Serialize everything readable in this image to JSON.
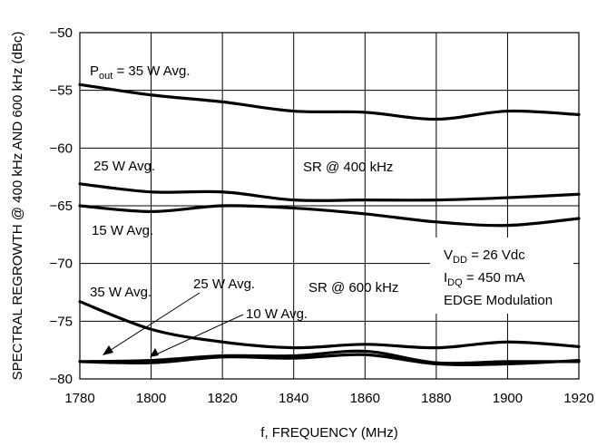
{
  "chart_data": {
    "type": "line",
    "title": "",
    "xlabel": "f, FREQUENCY (MHz)",
    "ylabel": "SPECTRAL REGROWTH @ 400 kHz AND 600 kHz (dBc)",
    "xlim": [
      1780,
      1920
    ],
    "ylim": [
      -80,
      -50
    ],
    "x_ticks": [
      "1780",
      "1800",
      "1820",
      "1840",
      "1860",
      "1880",
      "1900",
      "1920"
    ],
    "y_ticks": [
      "-50",
      "-55",
      "-60",
      "-65",
      "-70",
      "-75",
      "-80"
    ],
    "grid": true,
    "x": [
      1780,
      1800,
      1820,
      1840,
      1860,
      1880,
      1900,
      1920
    ],
    "series": [
      {
        "name": "Pout = 35 W Avg. (SR @ 400 kHz)",
        "values": [
          -54.5,
          -55.4,
          -56.0,
          -56.8,
          -56.9,
          -57.5,
          -56.8,
          -57.1
        ]
      },
      {
        "name": "25 W Avg. (SR @ 400 kHz)",
        "values": [
          -63.1,
          -63.8,
          -63.8,
          -64.5,
          -64.5,
          -64.5,
          -64.3,
          -64.0
        ]
      },
      {
        "name": "15 W Avg. (SR @ 400 kHz)",
        "values": [
          -65.0,
          -65.5,
          -65.0,
          -65.2,
          -65.7,
          -66.4,
          -66.7,
          -66.1
        ]
      },
      {
        "name": "35 W Avg. (SR @ 600 kHz)",
        "values": [
          -73.3,
          -75.7,
          -76.8,
          -77.3,
          -77.0,
          -77.3,
          -76.8,
          -77.2
        ]
      },
      {
        "name": "25 W Avg. (SR @ 600 kHz)",
        "values": [
          -78.5,
          -78.4,
          -78.0,
          -78.0,
          -77.6,
          -78.6,
          -78.5,
          -78.5
        ]
      },
      {
        "name": "10 W Avg. (SR @ 600 kHz)",
        "values": [
          -78.5,
          -78.6,
          -78.1,
          -78.2,
          -77.9,
          -78.7,
          -78.7,
          -78.4
        ]
      }
    ],
    "annotations": {
      "pout_35": "P",
      "pout_sub": "out",
      "pout_rest": " = 35 W Avg.",
      "w25_400": "25 W Avg.",
      "sr400": "SR @ 400 kHz",
      "w15_400": "15 W Avg.",
      "w35_600": "35 W Avg.",
      "w25_600": "25 W Avg.",
      "sr600": "SR @ 600 kHz",
      "w10_600": "10 W Avg.",
      "vdd_v": "V",
      "vdd_sub": "DD",
      "vdd_rest": " = 26 Vdc",
      "idq_i": "I",
      "idq_sub": "DQ",
      "idq_rest": " = 450 mA",
      "mod": "EDGE Modulation"
    }
  }
}
